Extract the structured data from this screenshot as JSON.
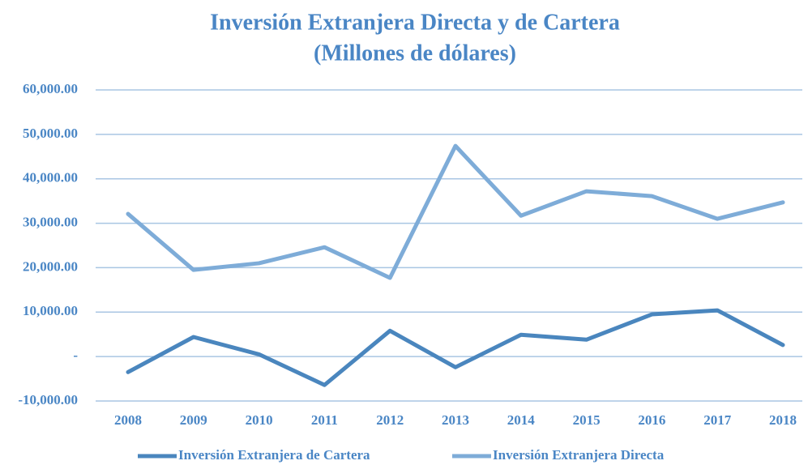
{
  "chart_data": {
    "type": "line",
    "title": "Inversión Extranjera Directa y de Cartera",
    "subtitle": "(Millones de dólares)",
    "categories": [
      "2008",
      "2009",
      "2010",
      "2011",
      "2012",
      "2013",
      "2014",
      "2015",
      "2016",
      "2017",
      "2018"
    ],
    "series": [
      {
        "name": "Inversión Extranjera de Cartera",
        "color": "#4a86be",
        "values": [
          -3500,
          4400,
          500,
          -6400,
          5800,
          -2400,
          4900,
          3800,
          9500,
          10400,
          2600
        ]
      },
      {
        "name": "Inversión Extranjera Directa",
        "color": "#7eacd8",
        "values": [
          32100,
          19500,
          21000,
          24600,
          17700,
          47400,
          31700,
          37200,
          36100,
          31000,
          34700
        ]
      }
    ],
    "ylim": [
      -10000,
      60000
    ],
    "yticks": [
      {
        "value": -10000,
        "label": "-10,000.00"
      },
      {
        "value": 0,
        "label": "-"
      },
      {
        "value": 10000,
        "label": "10,000.00"
      },
      {
        "value": 20000,
        "label": "20,000.00"
      },
      {
        "value": 30000,
        "label": "30,000.00"
      },
      {
        "value": 40000,
        "label": "40,000.00"
      },
      {
        "value": 50000,
        "label": "50,000.00"
      },
      {
        "value": 60000,
        "label": "60,000.00"
      }
    ],
    "grid": true,
    "legend": "bottom"
  }
}
